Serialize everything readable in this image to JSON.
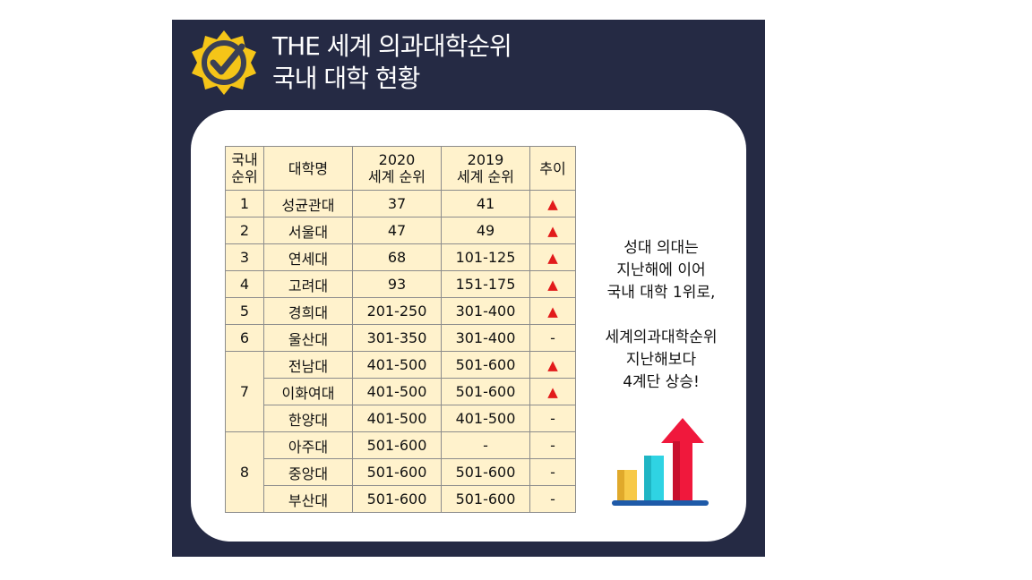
{
  "header": {
    "title_line1": "THE 세계 의과대학순위",
    "title_line2": "국내 대학 현황"
  },
  "table": {
    "headers": {
      "rank": [
        "국내",
        "순위"
      ],
      "name": "대학명",
      "y2020": [
        "2020",
        "세계 순위"
      ],
      "y2019": [
        "2019",
        "세계 순위"
      ],
      "trend": "추이"
    },
    "groups": [
      {
        "rank": "1",
        "rows": [
          {
            "name": "성균관대",
            "r2020": "37",
            "r2019": "41",
            "trend": "up"
          }
        ]
      },
      {
        "rank": "2",
        "rows": [
          {
            "name": "서울대",
            "r2020": "47",
            "r2019": "49",
            "trend": "up"
          }
        ]
      },
      {
        "rank": "3",
        "rows": [
          {
            "name": "연세대",
            "r2020": "68",
            "r2019": "101-125",
            "trend": "up"
          }
        ]
      },
      {
        "rank": "4",
        "rows": [
          {
            "name": "고려대",
            "r2020": "93",
            "r2019": "151-175",
            "trend": "up"
          }
        ]
      },
      {
        "rank": "5",
        "rows": [
          {
            "name": "경희대",
            "r2020": "201-250",
            "r2019": "301-400",
            "trend": "up"
          }
        ]
      },
      {
        "rank": "6",
        "rows": [
          {
            "name": "울산대",
            "r2020": "301-350",
            "r2019": "301-400",
            "trend": "-"
          }
        ]
      },
      {
        "rank": "7",
        "rows": [
          {
            "name": "전남대",
            "r2020": "401-500",
            "r2019": "501-600",
            "trend": "up"
          },
          {
            "name": "이화여대",
            "r2020": "401-500",
            "r2019": "501-600",
            "trend": "up"
          },
          {
            "name": "한양대",
            "r2020": "401-500",
            "r2019": "401-500",
            "trend": "-"
          }
        ]
      },
      {
        "rank": "8",
        "rows": [
          {
            "name": "아주대",
            "r2020": "501-600",
            "r2019": "-",
            "trend": "-"
          },
          {
            "name": "중앙대",
            "r2020": "501-600",
            "r2019": "501-600",
            "trend": "-"
          },
          {
            "name": "부산대",
            "r2020": "501-600",
            "r2019": "501-600",
            "trend": "-"
          }
        ]
      }
    ],
    "trend_up_symbol": "▲"
  },
  "note": {
    "lines1": [
      "성대 의대는",
      "지난해에 이어",
      "국내 대학 1위로,"
    ],
    "lines2": [
      "세계의과대학순위",
      "지난해보다",
      "4계단 상승!"
    ]
  },
  "colors": {
    "panel_bg": "#252a44",
    "table_bg": "#fff2cc",
    "up_arrow": "#e21b1b",
    "badge": "#f5c518"
  },
  "icons": {
    "badge": "check-badge-icon",
    "chart": "growth-chart-icon"
  }
}
